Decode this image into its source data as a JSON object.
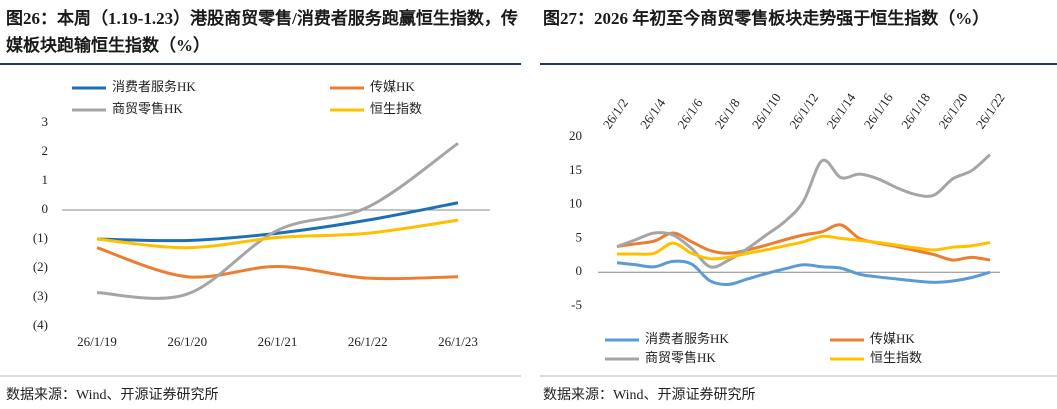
{
  "chart_data": [
    {
      "type": "line",
      "title": "图26：本周（1.19-1.23）港股商贸零售/消费者服务跑赢恒生指数，传媒板块跑输恒生指数（%）",
      "categories": [
        "26/1/19",
        "26/1/20",
        "26/1/21",
        "26/1/22",
        "26/1/23"
      ],
      "series": [
        {
          "name": "消费者服务HK",
          "color": "#1f6fb5",
          "values": [
            -1.0,
            -1.05,
            -0.8,
            -0.35,
            0.25
          ]
        },
        {
          "name": "传媒HK",
          "color": "#ed7d31",
          "values": [
            -1.3,
            -2.3,
            -1.95,
            -2.35,
            -2.3
          ]
        },
        {
          "name": "商贸零售HK",
          "color": "#a5a5a5",
          "values": [
            -2.85,
            -2.9,
            -0.7,
            0.1,
            2.3
          ]
        },
        {
          "name": "恒生指数",
          "color": "#ffc000",
          "values": [
            -1.0,
            -1.3,
            -0.95,
            -0.8,
            -0.35
          ]
        }
      ],
      "ylim": [
        -4,
        3
      ],
      "yticks": [
        3,
        2,
        1,
        0,
        {
          "value": -1,
          "label": "(1)"
        },
        {
          "value": -2,
          "label": "(2)"
        },
        {
          "value": -3,
          "label": "(3)"
        },
        {
          "value": -4,
          "label": "(4)"
        }
      ],
      "negative_tick_color": "#e00000",
      "legend": "top",
      "source": "数据来源：Wind、开源证券研究所"
    },
    {
      "type": "line",
      "title": "图27：2026 年初至今商贸零售板块走势强于恒生指数（%）",
      "categories": [
        "26/1/2",
        null,
        "26/1/4",
        null,
        "26/1/6",
        null,
        "26/1/8",
        null,
        "26/1/10",
        null,
        "26/1/12",
        null,
        "26/1/14",
        null,
        "26/1/16",
        null,
        "26/1/18",
        null,
        "26/1/20",
        null,
        "26/1/22"
      ],
      "series": [
        {
          "name": "消费者服务HK",
          "color": "#5b9bd5",
          "values": [
            1.4,
            1.1,
            0.8,
            1.6,
            1.2,
            -1.3,
            -1.8,
            -1.0,
            -0.2,
            0.5,
            1.1,
            0.8,
            0.6,
            -0.3,
            -0.7,
            -1.0,
            -1.3,
            -1.5,
            -1.3,
            -0.8,
            0
          ]
        },
        {
          "name": "传媒HK",
          "color": "#ed7d31",
          "values": [
            3.8,
            4.2,
            4.6,
            5.8,
            4.5,
            3.2,
            2.8,
            3.3,
            4.0,
            4.8,
            5.5,
            6.0,
            7.0,
            5.0,
            4.3,
            3.8,
            3.2,
            2.6,
            1.8,
            2.2,
            1.8
          ]
        },
        {
          "name": "商贸零售HK",
          "color": "#a5a5a5",
          "values": [
            3.8,
            4.8,
            5.8,
            5.5,
            3.5,
            0.8,
            1.8,
            3.5,
            5.5,
            7.5,
            10.5,
            16.5,
            14.0,
            14.5,
            13.8,
            12.5,
            11.5,
            11.4,
            13.8,
            15.0,
            17.4
          ]
        },
        {
          "name": "恒生指数",
          "color": "#ffc000",
          "values": [
            2.7,
            2.7,
            2.8,
            4.3,
            2.8,
            2.0,
            2.2,
            2.8,
            3.3,
            3.9,
            4.5,
            5.3,
            5.0,
            4.7,
            4.4,
            4.0,
            3.6,
            3.3,
            3.7,
            3.9,
            4.4
          ]
        }
      ],
      "ylim": [
        -5,
        20
      ],
      "yticks": [
        20,
        15,
        10,
        5,
        0,
        -5
      ],
      "legend": "bottom",
      "source": "数据来源：Wind、开源证券研究所"
    }
  ]
}
